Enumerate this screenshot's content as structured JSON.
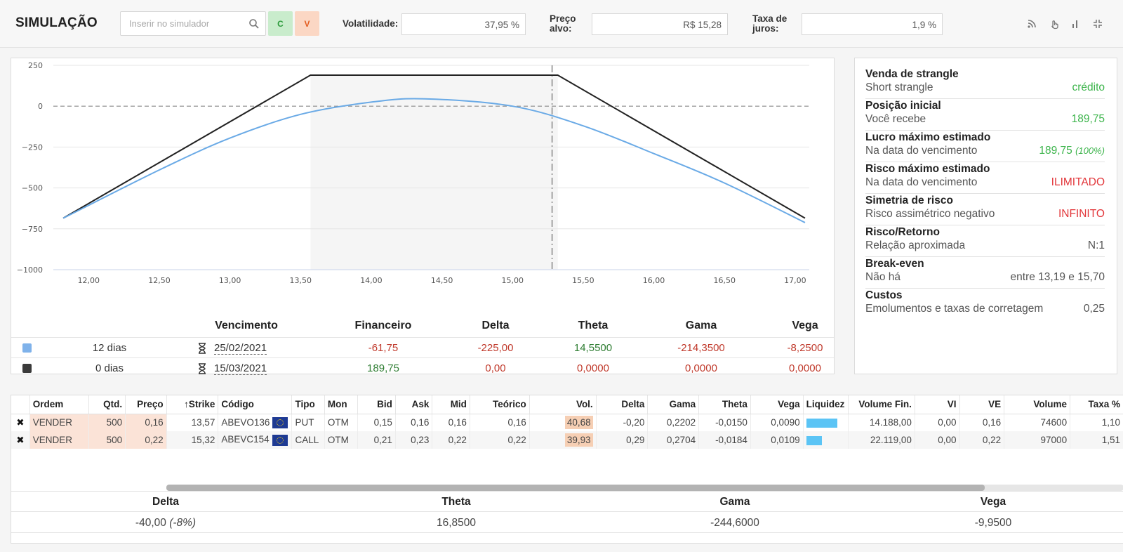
{
  "topbar": {
    "title": "SIMULAÇÃO",
    "search_placeholder": "Inserir no simulador",
    "buy_label": "C",
    "sell_label": "V",
    "volatility_label": "Volatilidade:",
    "volatility_value": "37,95 %",
    "target_label_1": "Preço",
    "target_label_2": "alvo:",
    "target_value": "R$ 15,28",
    "rate_label_1": "Taxa de",
    "rate_label_2": "juros:",
    "rate_value": "1,9 %",
    "icons": [
      "rss-icon",
      "touch-icon",
      "bar-chart-icon",
      "compress-icon"
    ]
  },
  "chart_data": {
    "type": "line",
    "x_ticks": [
      "12,00",
      "12,50",
      "13,00",
      "13,50",
      "14,00",
      "14,50",
      "15,00",
      "15,50",
      "16,00",
      "16,50",
      "17,00"
    ],
    "y_ticks": [
      "250",
      "0",
      "−250",
      "−500",
      "−750",
      "−1000"
    ],
    "xlim": [
      11.75,
      17.1
    ],
    "ylim": [
      -1000,
      250
    ],
    "shaded_range": [
      13.57,
      15.32
    ],
    "target_line_x": 15.28,
    "series": [
      {
        "color": "#222222",
        "x": [
          11.82,
          13.57,
          15.32,
          17.07
        ],
        "y": [
          -685,
          189.75,
          189.75,
          -685
        ]
      },
      {
        "color": "#6aaae6",
        "x": [
          11.82,
          12.5,
          13.0,
          13.5,
          14.0,
          14.38,
          15.0,
          15.5,
          16.0,
          16.5,
          17.07
        ],
        "y": [
          -685,
          -390,
          -195,
          -50,
          25,
          45,
          0,
          -120,
          -290,
          -470,
          -712
        ]
      }
    ]
  },
  "legend_table": {
    "headers": [
      "Vencimento",
      "Financeiro",
      "Delta",
      "Theta",
      "Gama",
      "Vega"
    ],
    "rows": [
      {
        "color": "#7fb2ea",
        "days": "12 dias",
        "date": "25/02/2021",
        "fin": "-61,75",
        "delta": "-225,00",
        "theta": "14,5500",
        "gama": "-214,3500",
        "vega": "-8,2500"
      },
      {
        "color": "#3a3a3a",
        "days": "0 dias",
        "date": "15/03/2021",
        "fin": "189,75",
        "delta": "0,00",
        "theta": "0,0000",
        "gama": "0,0000",
        "vega": "0,0000"
      }
    ]
  },
  "summary": [
    {
      "title": "Venda de strangle",
      "sub": "Short strangle",
      "value": "crédito",
      "extra": ""
    },
    {
      "title": "Posição inicial",
      "sub": "Você recebe",
      "value": "189,75",
      "extra": ""
    },
    {
      "title": "Lucro máximo estimado",
      "sub": "Na data do vencimento",
      "value": "189,75",
      "extra": "(100%)"
    },
    {
      "title": "Risco máximo estimado",
      "sub": "Na data do vencimento",
      "value": "ILIMITADO",
      "extra": ""
    },
    {
      "title": "Simetria de risco",
      "sub": "Risco assimétrico negativo",
      "value": "INFINITO",
      "extra": ""
    },
    {
      "title": "Risco/Retorno",
      "sub": "Relação aproximada",
      "value": "N:1",
      "extra": ""
    },
    {
      "title": "Break-even",
      "sub": "Não há",
      "value": "entre 13,19 e 15,70",
      "extra": ""
    },
    {
      "title": "Custos",
      "sub": "Emolumentos e taxas de corretagem",
      "value": "0,25",
      "extra": ""
    }
  ],
  "orders": {
    "headers": [
      "Ordem",
      "Qtd.",
      "Preço",
      "Strike",
      "Código",
      "Tipo",
      "Mon",
      "Bid",
      "Ask",
      "Mid",
      "Teórico",
      "Vol.",
      "Delta",
      "Gama",
      "Theta",
      "Vega",
      "Liquidez",
      "Volume Fin.",
      "VI",
      "VE",
      "Volume",
      "Taxa %"
    ],
    "rows": [
      {
        "ordem": "VENDER",
        "qtd": "500",
        "preco": "0,16",
        "strike": "13,57",
        "codigo": "ABEVO136",
        "tipo": "PUT",
        "mon": "OTM",
        "bid": "0,15",
        "ask": "0,16",
        "mid": "0,16",
        "teorico": "0,16",
        "vol": "40,68",
        "delta": "-0,20",
        "gama": "0,2202",
        "theta": "-0,0150",
        "vega": "0,0090",
        "liquidez": 0.8,
        "volfin": "14.188,00",
        "vi": "0,00",
        "ve": "0,16",
        "volume": "74600",
        "taxa": "1,10"
      },
      {
        "ordem": "VENDER",
        "qtd": "500",
        "preco": "0,22",
        "strike": "15,32",
        "codigo": "ABEVC154",
        "tipo": "CALL",
        "mon": "OTM",
        "bid": "0,21",
        "ask": "0,23",
        "mid": "0,22",
        "teorico": "0,22",
        "vol": "39,93",
        "delta": "0,29",
        "gama": "0,2704",
        "theta": "-0,0184",
        "vega": "0,0109",
        "liquidez": 0.4,
        "volfin": "22.119,00",
        "vi": "0,00",
        "ve": "0,22",
        "volume": "97000",
        "taxa": "1,51"
      }
    ]
  },
  "greeks": {
    "delta_label": "Delta",
    "theta_label": "Theta",
    "gama_label": "Gama",
    "vega_label": "Vega",
    "delta_value": "-40,00",
    "delta_pct": "(-8%)",
    "theta_value": "16,8500",
    "gama_value": "-244,6000",
    "vega_value": "-9,9500"
  }
}
